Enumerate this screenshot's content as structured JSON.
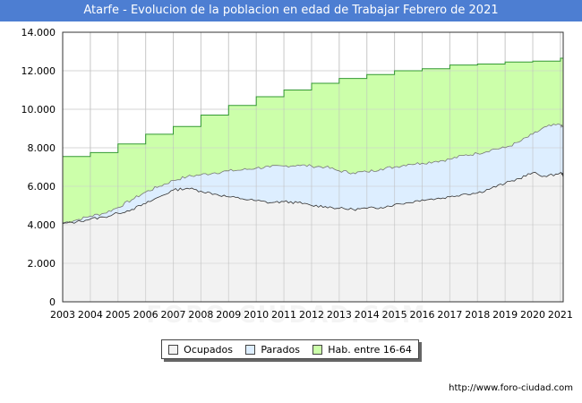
{
  "colors": {
    "title_bg": "#4d7ed2",
    "ocupados_fill": "#f2f2f2",
    "parados_fill": "#ddeeff",
    "hab_fill": "#ccffaa",
    "hab_line": "#339933",
    "line": "#333333",
    "grid": "#dddddd"
  },
  "watermark": "FORO-CIUDAD.COM",
  "source_url": "http://www.foro-ciudad.com",
  "chart_data": {
    "type": "area",
    "title": "Atarfe - Evolucion de la poblacion en edad de Trabajar Febrero de 2021",
    "xlabel": "",
    "ylabel": "",
    "xlim": [
      2003,
      2021.1
    ],
    "ylim": [
      0,
      14000
    ],
    "y_ticks": [
      0,
      2000,
      4000,
      6000,
      8000,
      10000,
      12000,
      14000
    ],
    "y_tick_labels": [
      "0",
      "2.000",
      "4.000",
      "6.000",
      "8.000",
      "10.000",
      "12.000",
      "14.000"
    ],
    "x_ticks": [
      2003,
      2004,
      2005,
      2006,
      2007,
      2008,
      2009,
      2010,
      2011,
      2012,
      2013,
      2014,
      2015,
      2016,
      2017,
      2018,
      2019,
      2020,
      2021
    ],
    "x_tick_labels": [
      "2003",
      "2004",
      "2005",
      "2006",
      "2007",
      "2008",
      "2009",
      "2010",
      "2011",
      "2012",
      "2013",
      "2014",
      "2015",
      "2016",
      "2017",
      "2018",
      "2019",
      "2020",
      "2021"
    ],
    "grid": true,
    "legend": [
      "Ocupados",
      "Parados",
      "Hab. entre 16-64"
    ],
    "series": [
      {
        "name": "Hab. entre 16-64",
        "x": [
          2003,
          2004,
          2005,
          2006,
          2007,
          2008,
          2009,
          2010,
          2011,
          2012,
          2013,
          2014,
          2015,
          2016,
          2017,
          2018,
          2019,
          2020,
          2021
        ],
        "values": [
          7550,
          7750,
          8200,
          8700,
          9100,
          9700,
          10200,
          10650,
          11000,
          11350,
          11600,
          11800,
          12000,
          12100,
          12300,
          12350,
          12450,
          12500,
          12650
        ]
      },
      {
        "name": "Parados_top",
        "x": [
          2003.0,
          2003.5,
          2004.0,
          2004.5,
          2005.0,
          2005.5,
          2006.0,
          2006.5,
          2007.0,
          2007.5,
          2008.0,
          2008.5,
          2009.0,
          2009.5,
          2010.0,
          2010.5,
          2011.0,
          2011.5,
          2012.0,
          2012.5,
          2013.0,
          2013.5,
          2014.0,
          2014.5,
          2015.0,
          2015.5,
          2016.0,
          2016.5,
          2017.0,
          2017.5,
          2018.0,
          2018.5,
          2019.0,
          2019.5,
          2020.0,
          2020.5,
          2021.0,
          2021.1
        ],
        "values": [
          4100,
          4250,
          4450,
          4600,
          4900,
          5300,
          5700,
          6000,
          6300,
          6500,
          6600,
          6700,
          6800,
          6850,
          6950,
          7000,
          7050,
          7100,
          7050,
          7000,
          6800,
          6700,
          6750,
          6900,
          7000,
          7150,
          7200,
          7300,
          7400,
          7600,
          7700,
          7900,
          8000,
          8300,
          8700,
          9100,
          9200,
          9050
        ]
      },
      {
        "name": "Ocupados",
        "x": [
          2003.0,
          2003.5,
          2004.0,
          2004.5,
          2005.0,
          2005.5,
          2006.0,
          2006.5,
          2007.0,
          2007.5,
          2008.0,
          2008.5,
          2009.0,
          2009.5,
          2010.0,
          2010.5,
          2011.0,
          2011.5,
          2012.0,
          2012.5,
          2013.0,
          2013.5,
          2014.0,
          2014.5,
          2015.0,
          2015.5,
          2016.0,
          2016.5,
          2017.0,
          2017.5,
          2018.0,
          2018.5,
          2019.0,
          2019.5,
          2020.0,
          2020.5,
          2021.0,
          2021.1
        ],
        "values": [
          4050,
          4150,
          4300,
          4400,
          4600,
          4800,
          5100,
          5450,
          5800,
          5900,
          5750,
          5600,
          5450,
          5350,
          5250,
          5150,
          5200,
          5150,
          5000,
          4950,
          4850,
          4800,
          4850,
          4900,
          5050,
          5150,
          5300,
          5350,
          5450,
          5600,
          5650,
          5900,
          6150,
          6400,
          6700,
          6500,
          6700,
          6600
        ]
      }
    ]
  }
}
